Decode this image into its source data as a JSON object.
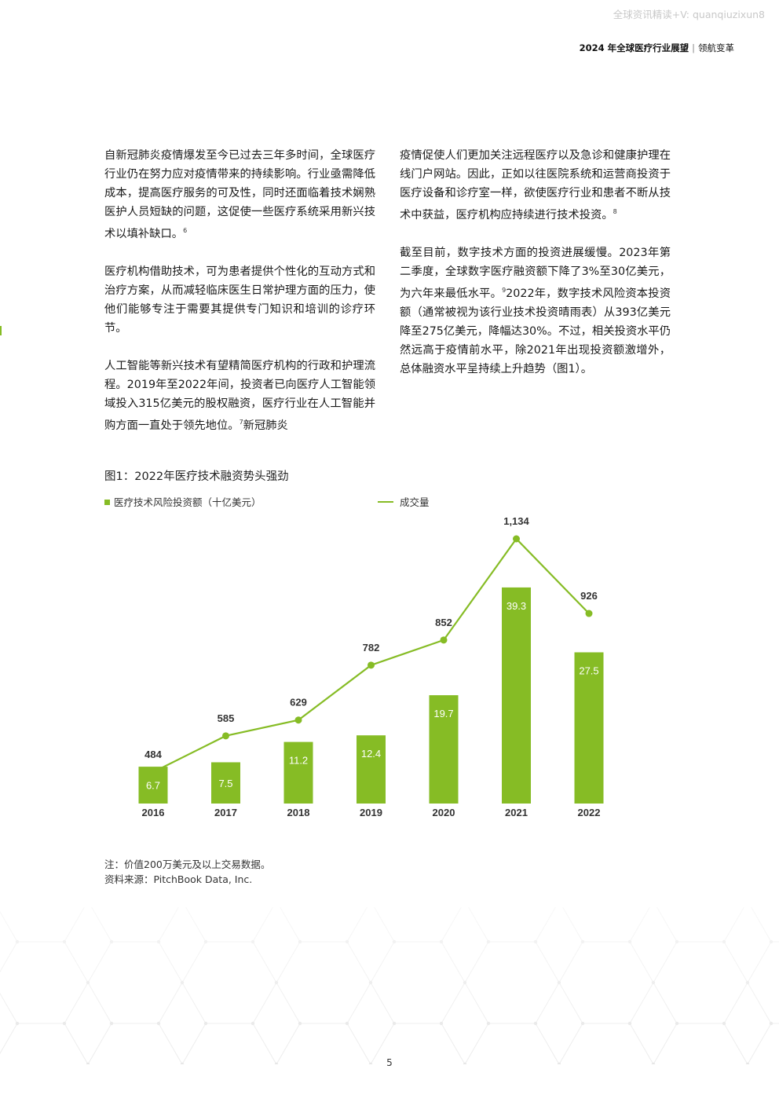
{
  "watermark": "全球资讯精读+V: quanqiuzixun8",
  "header": {
    "title": "2024 年全球医疗行业展望",
    "subtitle": "领航变革"
  },
  "left_column": {
    "p1": "自新冠肺炎疫情爆发至今已过去三年多时间，全球医疗行业仍在努力应对疫情带来的持续影响。行业亟需降低成本，提高医疗服务的可及性，同时还面临着技术娴熟医护人员短缺的问题，这促使一些医疗系统采用新兴技术以填补缺口。",
    "p1_ref": "6",
    "p2": "医疗机构借助技术，可为患者提供个性化的互动方式和治疗方案，从而减轻临床医生日常护理方面的压力，使他们能够专注于需要其提供专门知识和培训的诊疗环节。",
    "p3": "人工智能等新兴技术有望精简医疗机构的行政和护理流程。2019年至2022年间，投资者已向医疗人工智能领域投入315亿美元的股权融资，医疗行业在人工智能并购方面一直处于领先地位。",
    "p3_ref": "7",
    "p3_tail": "新冠肺炎"
  },
  "right_column": {
    "p1": "疫情促使人们更加关注远程医疗以及急诊和健康护理在线门户网站。因此，正如以往医院系统和运营商投资于医疗设备和诊疗室一样，欲使医疗行业和患者不断从技术中获益，医疗机构应持续进行技术投资。",
    "p1_ref": "8",
    "p2_a": "截至目前，数字技术方面的投资进展缓慢。2023年第二季度，全球数字医疗融资额下降了3%至30亿美元，为六年来最低水平。",
    "p2_ref": "9",
    "p2_b": "2022年，数字技术风险资本投资额（通常被视为该行业技术投资晴雨表）从393亿美元降至275亿美元，降幅达30%。不过，相关投资水平仍然远高于疫情前水平，除2021年出现投资额激增外，总体融资水平呈持续上升趋势（图1）。"
  },
  "figure": {
    "title": "图1：2022年医疗技术融资势头强劲",
    "note": "注：价值200万美元及以上交易数据。",
    "source": "资料来源：PitchBook Data, Inc."
  },
  "chart_data": {
    "type": "bar+line",
    "categories": [
      "2016",
      "2017",
      "2018",
      "2019",
      "2020",
      "2021",
      "2022"
    ],
    "series": [
      {
        "name": "医疗技术风险投资额（十亿美元）",
        "type": "bar",
        "values": [
          6.7,
          7.5,
          11.2,
          12.4,
          19.7,
          39.3,
          27.5
        ],
        "labels": [
          "6.7",
          "7.5",
          "11.2",
          "12.4",
          "19.7",
          "39.3",
          "27.5"
        ]
      },
      {
        "name": "成交量",
        "type": "line",
        "values": [
          484,
          585,
          629,
          782,
          852,
          1134,
          926
        ],
        "labels": [
          "484",
          "585",
          "629",
          "782",
          "852",
          "1,134",
          "926"
        ]
      }
    ],
    "legend": "top",
    "grid": false,
    "colors": {
      "bar": "#86bc25",
      "line": "#86bc25"
    }
  },
  "page_number": "5",
  "colors": {
    "accent": "#86bc25"
  }
}
